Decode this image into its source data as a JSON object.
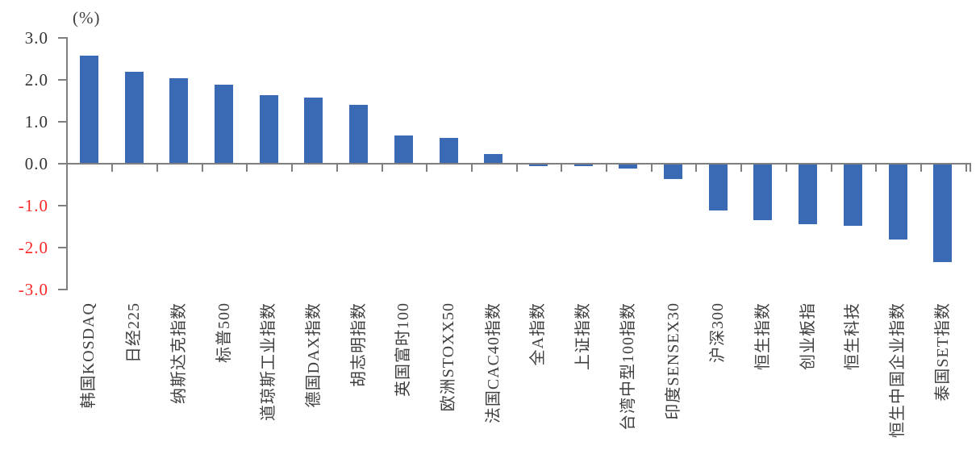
{
  "chart_data": {
    "type": "bar",
    "title": "",
    "ylabel": "(%)",
    "xlabel": "",
    "unit": "%",
    "ylim": [
      -3.0,
      3.0
    ],
    "ytick_step": 1.0,
    "yticks": [
      "3.0",
      "2.0",
      "1.0",
      "0.0",
      "-1.0",
      "-2.0",
      "-3.0"
    ],
    "ytick_values": [
      3,
      2,
      1,
      0,
      -1,
      -2,
      -3
    ],
    "grid": false,
    "legend": "none",
    "bar_color": "#3a6ab3",
    "axis_color": "#7f7f7f",
    "tick_label_color": "#333333",
    "negative_tick_label_color": "#fb2626",
    "categories": [
      "韩国KOSDAQ",
      "日经225",
      "纳斯达克指数",
      "标普500",
      "道琼斯工业指数",
      "德国DAX指数",
      "胡志明指数",
      "英国富时100",
      "欧洲STOXX50",
      "法国CAC40指数",
      "全A指数",
      "上证指数",
      "台湾中型100指数",
      "印度SENSEX30",
      "沪深300",
      "恒生指数",
      "创业板指",
      "恒生科技",
      "恒生中国企业指数",
      "泰国SET指数"
    ],
    "values": [
      2.56,
      2.17,
      2.01,
      1.86,
      1.61,
      1.55,
      1.39,
      0.65,
      0.6,
      0.21,
      -0.04,
      -0.03,
      -0.09,
      -0.34,
      -1.1,
      -1.33,
      -1.42,
      -1.46,
      -1.79,
      -2.33
    ]
  }
}
